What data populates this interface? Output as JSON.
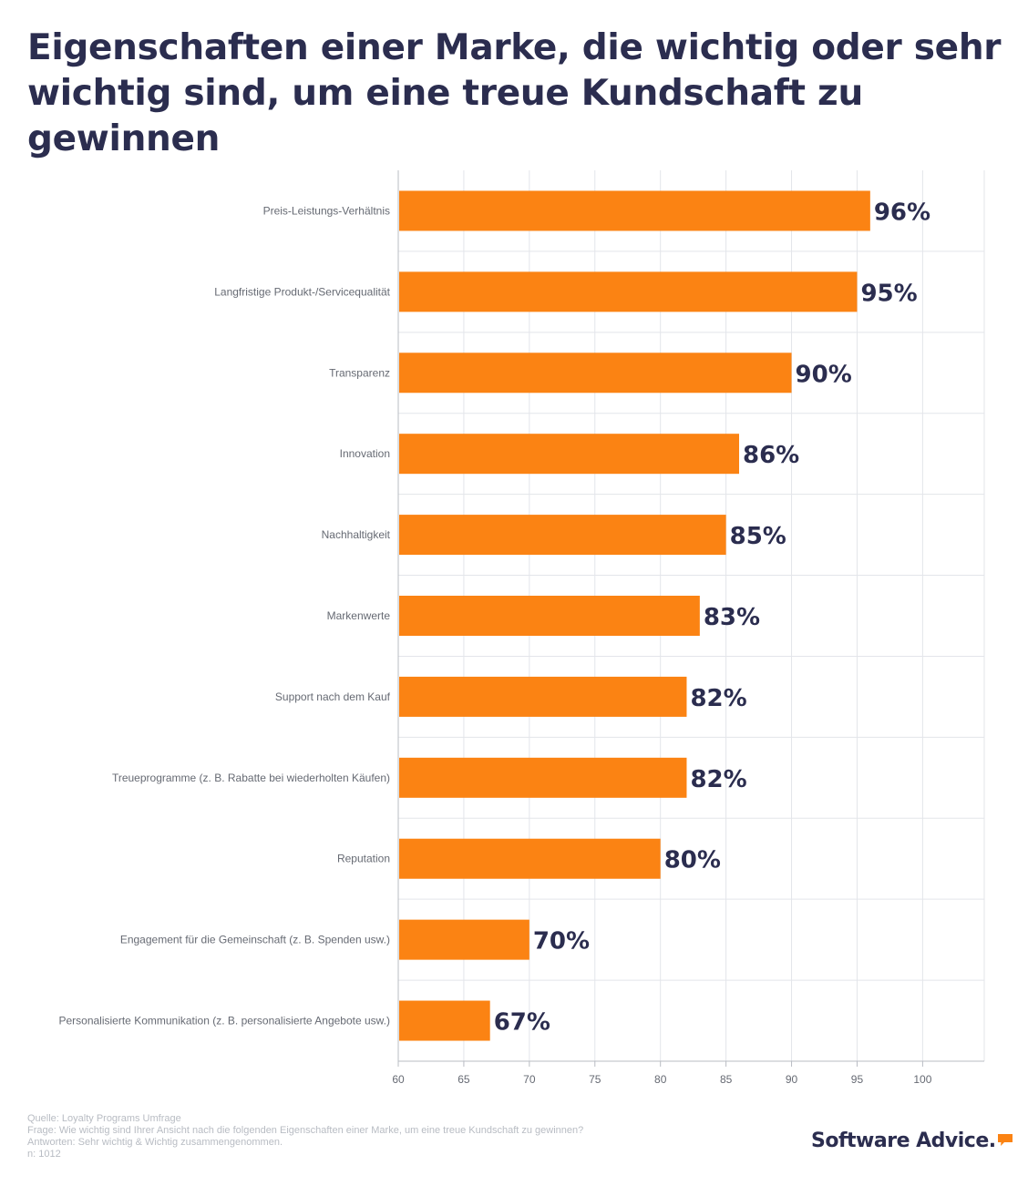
{
  "title": "Eigenschaften einer Marke, die wichtig oder sehr wichtig sind, um eine treue Kundschaft zu gewinnen",
  "chart_data": {
    "type": "bar",
    "orientation": "horizontal",
    "categories": [
      "Preis-Leistungs-Verhältnis",
      "Langfristige Produkt-/Servicequalität",
      "Transparenz",
      "Innovation",
      "Nachhaltigkeit",
      "Markenwerte",
      "Support nach dem Kauf",
      "Treueprogramme (z. B. Rabatte bei wiederholten Käufen)",
      "Reputation",
      "Engagement für die Gemeinschaft (z. B. Spenden usw.)",
      "Personalisierte Kommunikation (z. B. personalisierte Angebote usw.)"
    ],
    "values": [
      96,
      95,
      90,
      86,
      85,
      83,
      82,
      82,
      80,
      70,
      67
    ],
    "value_labels": [
      "96%",
      "95%",
      "90%",
      "86%",
      "85%",
      "83%",
      "82%",
      "82%",
      "80%",
      "70%",
      "67%"
    ],
    "xlim": [
      60,
      104.7
    ],
    "x_ticks": [
      60,
      65,
      70,
      75,
      80,
      85,
      90,
      95,
      100
    ],
    "grid": true,
    "bar_color": "#fb8313"
  },
  "footer": {
    "source": "Quelle: Loyalty Programs Umfrage",
    "question": "Frage: Wie wichtig sind Ihrer Ansicht nach die folgenden Eigenschaften einer Marke, um eine treue Kundschaft zu gewinnen?",
    "answers": "Antworten: Sehr wichtig & Wichtig zusammengenommen.",
    "n": "n: 1012"
  },
  "brand": {
    "name": "Software Advice.",
    "icon": "speech-bubble-icon",
    "accent": "#fb8313"
  }
}
